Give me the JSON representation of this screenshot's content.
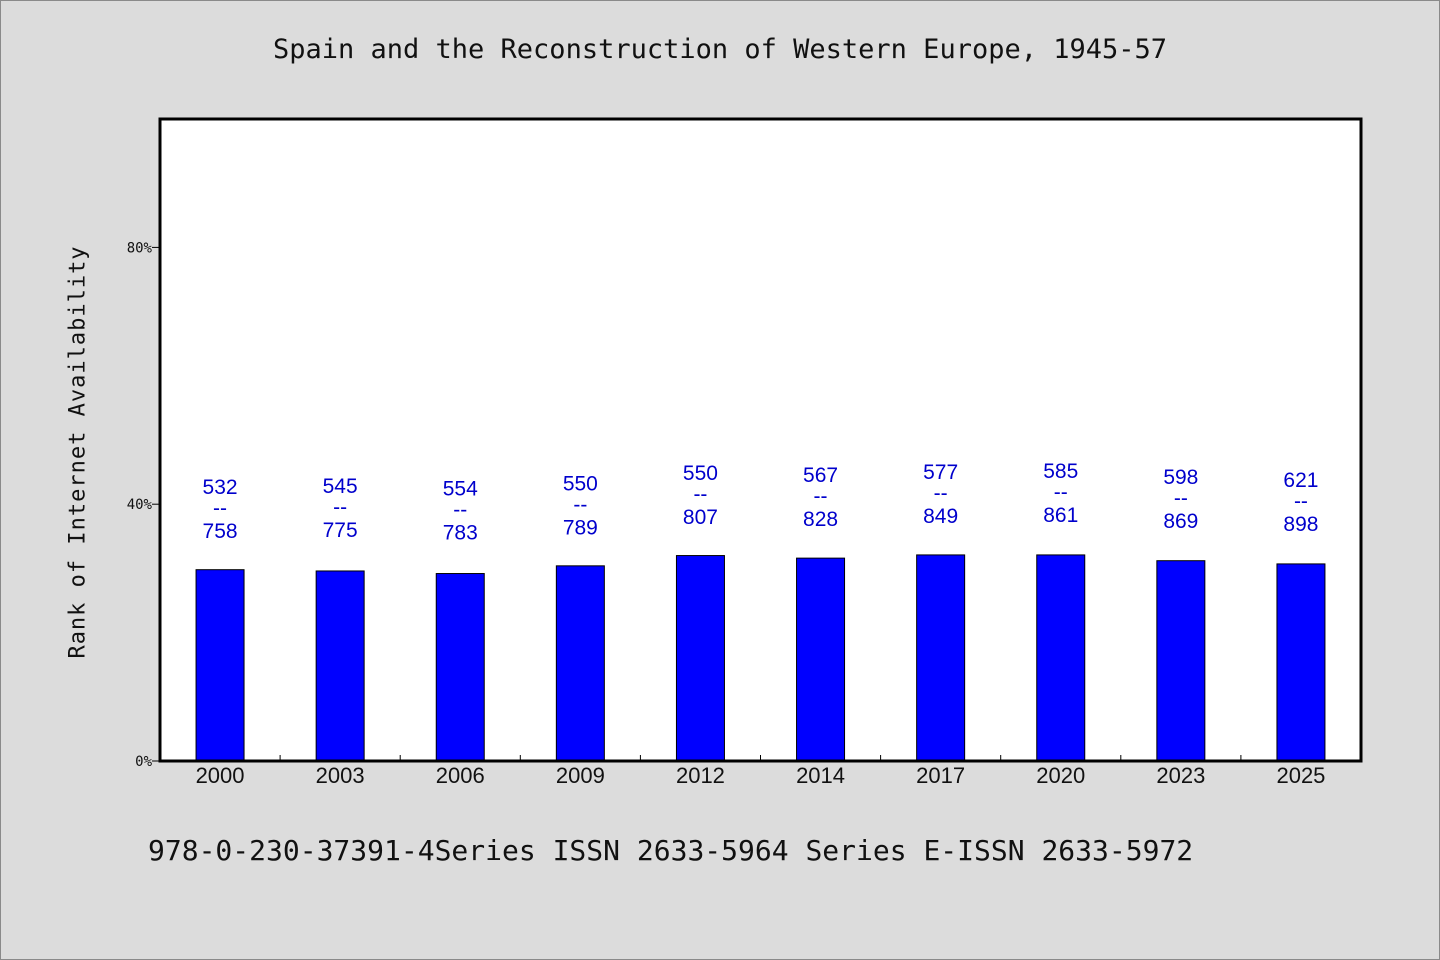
{
  "title": "Spain and the Reconstruction of Western Europe, 1945-57",
  "footer": "978-0-230-37391-4Series ISSN 2633-5964 Series E-ISSN 2633-5972",
  "chart_data": {
    "type": "bar",
    "title": "Spain and the Reconstruction of Western Europe, 1945-57",
    "xlabel": "",
    "ylabel": "Rank of Internet Availability",
    "categories": [
      "2000",
      "2003",
      "2006",
      "2009",
      "2012",
      "2014",
      "2017",
      "2020",
      "2023",
      "2025"
    ],
    "values": [
      29.8,
      29.6,
      29.2,
      30.4,
      32.0,
      31.6,
      32.1,
      32.1,
      31.2,
      30.7
    ],
    "data_labels": [
      {
        "top": "532",
        "mid": "--",
        "bottom": "758"
      },
      {
        "top": "545",
        "mid": "--",
        "bottom": "775"
      },
      {
        "top": "554",
        "mid": "--",
        "bottom": "783"
      },
      {
        "top": "550",
        "mid": "--",
        "bottom": "789"
      },
      {
        "top": "550",
        "mid": "--",
        "bottom": "807"
      },
      {
        "top": "567",
        "mid": "--",
        "bottom": "828"
      },
      {
        "top": "577",
        "mid": "--",
        "bottom": "849"
      },
      {
        "top": "585",
        "mid": "--",
        "bottom": "861"
      },
      {
        "top": "598",
        "mid": "--",
        "bottom": "869"
      },
      {
        "top": "621",
        "mid": "--",
        "bottom": "898"
      }
    ],
    "label_values": [
      40.0,
      40.2,
      39.8,
      40.6,
      42.2,
      41.9,
      42.4,
      42.5,
      41.6,
      41.1
    ],
    "yticks": [
      0,
      40,
      80
    ],
    "ytick_labels": [
      "0%",
      "40%",
      "80%"
    ],
    "ylim": [
      0,
      100
    ],
    "grid": false,
    "legend": "none",
    "colors": {
      "bar": "#0000ff",
      "bar_edge": "#000000",
      "data_label": "#0000cc",
      "plot_bg": "#ffffff",
      "page_bg": "#dcdcdc"
    }
  }
}
